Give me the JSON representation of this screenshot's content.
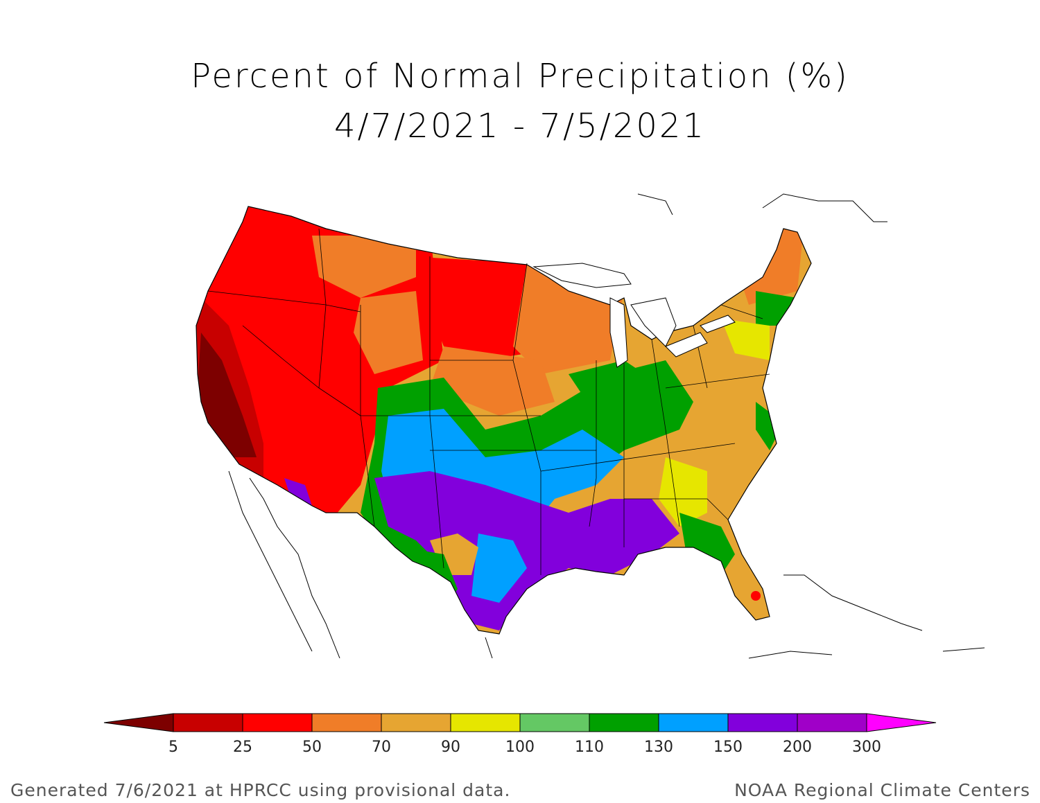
{
  "title": {
    "line1": "Percent of Normal Precipitation (%)",
    "line2": "4/7/2021 - 7/5/2021"
  },
  "legend": {
    "ticks": [
      "5",
      "25",
      "50",
      "70",
      "90",
      "100",
      "110",
      "130",
      "150",
      "200",
      "300"
    ],
    "colors": [
      "#7d0000",
      "#c80000",
      "#ff0000",
      "#f07d28",
      "#e6a532",
      "#e6e600",
      "#64c864",
      "#00a000",
      "#00a0ff",
      "#8200dc",
      "#a000c8",
      "#ff00ff"
    ]
  },
  "footer": {
    "left": "Generated 7/6/2021 at HPRCC using provisional data.",
    "right": "NOAA Regional Climate Centers"
  }
}
